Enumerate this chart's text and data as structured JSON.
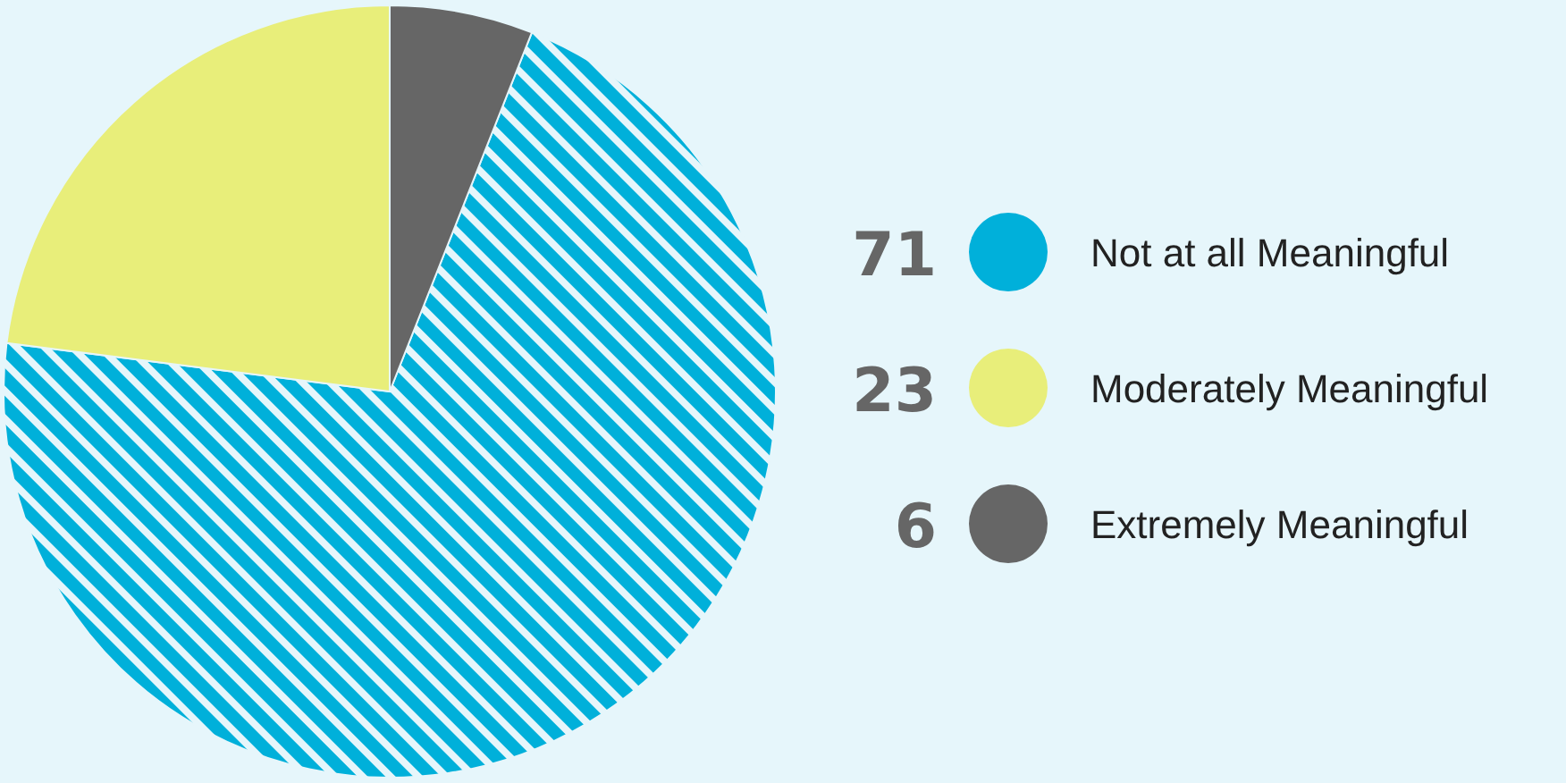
{
  "chart_data": {
    "type": "pie",
    "categories": [
      "Not at all Meaningful",
      "Moderately Meaningful",
      "Extremely Meaningful"
    ],
    "values": [
      71,
      23,
      6
    ],
    "colors": [
      "#00b0da",
      "#e8ee7a",
      "#666666"
    ],
    "data_labels": true,
    "legend": "right"
  }
}
